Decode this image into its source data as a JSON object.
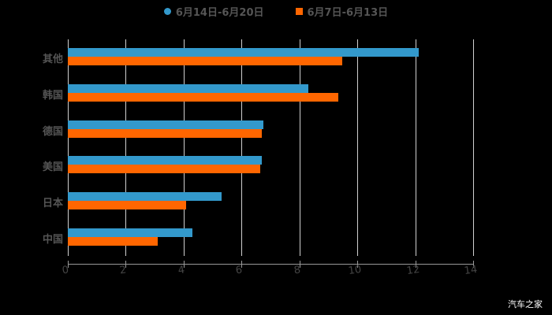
{
  "chart_data": {
    "type": "bar",
    "orientation": "horizontal",
    "title": "",
    "xlabel": "",
    "ylabel": "",
    "xlim": [
      0,
      14
    ],
    "x_ticks": [
      "0",
      "2",
      "4",
      "6",
      "8",
      "10",
      "12",
      "14"
    ],
    "grid": true,
    "legend_position": "top",
    "categories": [
      "其他",
      "韩国",
      "德国",
      "美国",
      "日本",
      "中国"
    ],
    "series": [
      {
        "name": "6月14日-6月20日",
        "color": "#3399cc",
        "values": [
          12.13,
          8.31,
          6.76,
          6.7,
          5.31,
          4.3
        ]
      },
      {
        "name": "6月7日-6月13日",
        "color": "#ff6600",
        "values": [
          9.48,
          9.35,
          6.7,
          6.65,
          4.09,
          3.11
        ]
      }
    ]
  },
  "legend": {
    "series1": "6月14日-6月20日",
    "series2": "6月7日-6月13日"
  },
  "watermark": "汽车之家"
}
